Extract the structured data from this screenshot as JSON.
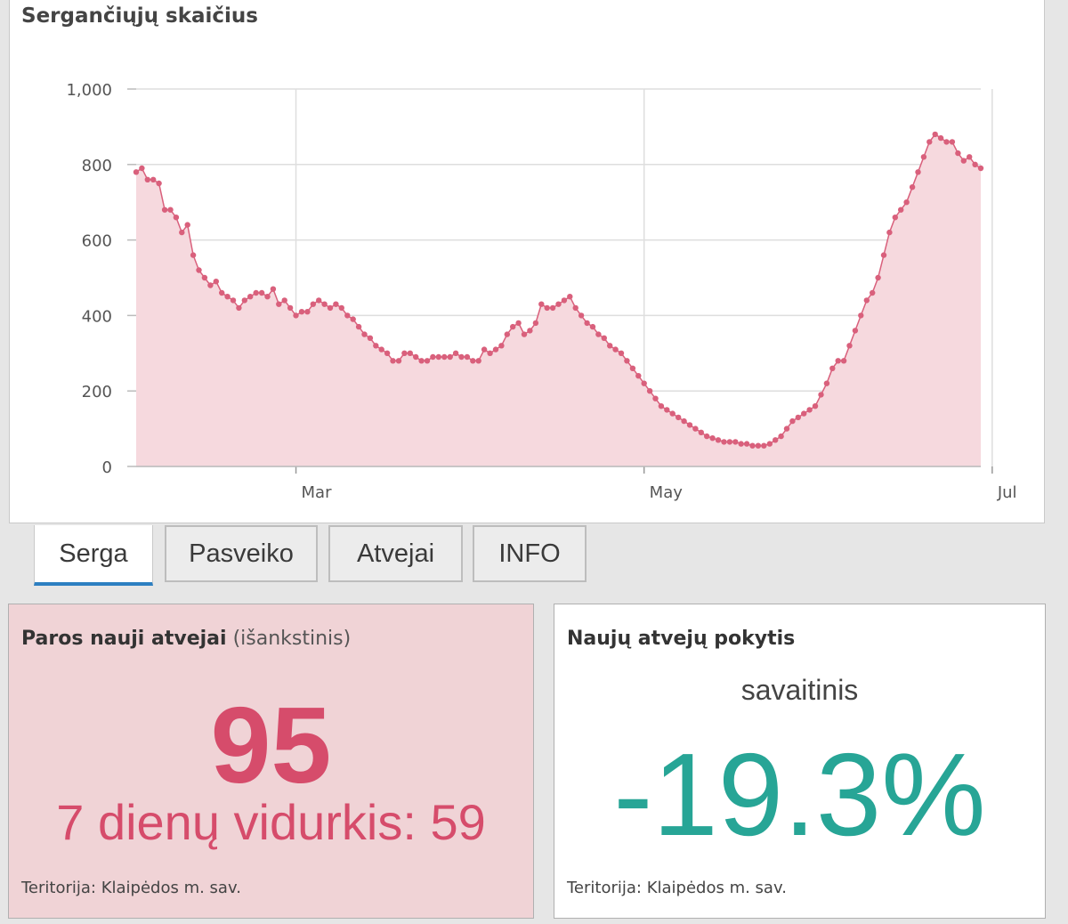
{
  "chart": {
    "title": "Sergančiųjų skaičius"
  },
  "chart_data": {
    "type": "area",
    "title": "Sergančiųjų skaičius",
    "xlabel": "",
    "ylabel": "",
    "ylim": [
      0,
      1000
    ],
    "y_ticks": [
      "0",
      "200",
      "400",
      "600",
      "800",
      "1,000"
    ],
    "x_ticks": [
      "Mar",
      "May",
      "Jul"
    ],
    "grid": true,
    "colors": {
      "line": "#d9607c",
      "fill": "#f6d9de",
      "grid": "#dedede"
    },
    "x_start": "2021-02-01",
    "values": [
      780,
      790,
      760,
      760,
      750,
      680,
      680,
      660,
      620,
      640,
      560,
      520,
      500,
      480,
      490,
      460,
      450,
      440,
      420,
      440,
      450,
      460,
      460,
      450,
      470,
      430,
      440,
      420,
      400,
      410,
      410,
      430,
      440,
      430,
      420,
      430,
      420,
      400,
      390,
      370,
      350,
      340,
      320,
      310,
      300,
      280,
      280,
      300,
      300,
      290,
      280,
      280,
      290,
      290,
      290,
      290,
      300,
      290,
      290,
      280,
      280,
      310,
      300,
      310,
      320,
      350,
      370,
      380,
      350,
      360,
      380,
      430,
      420,
      420,
      430,
      440,
      450,
      420,
      400,
      380,
      370,
      350,
      340,
      320,
      310,
      300,
      280,
      260,
      240,
      220,
      200,
      180,
      160,
      150,
      140,
      130,
      120,
      110,
      100,
      90,
      80,
      75,
      70,
      65,
      65,
      65,
      60,
      60,
      55,
      55,
      55,
      60,
      70,
      80,
      100,
      120,
      130,
      140,
      150,
      160,
      190,
      220,
      260,
      280,
      280,
      320,
      360,
      400,
      440,
      460,
      500,
      560,
      620,
      660,
      680,
      700,
      740,
      780,
      820,
      860,
      880,
      870,
      860,
      860,
      830,
      810,
      820,
      800,
      790
    ]
  },
  "tabs": [
    {
      "label": "Serga",
      "active": true
    },
    {
      "label": "Pasveiko",
      "active": false
    },
    {
      "label": "Atvejai",
      "active": false
    },
    {
      "label": "INFO",
      "active": false
    }
  ],
  "new_cases": {
    "heading": "Paros nauji atvejai",
    "subheading": "(išankstinis)",
    "value": "95",
    "avg_text": "7 dienų vidurkis: 59",
    "territory": "Teritorija: Klaipėdos m. sav."
  },
  "change": {
    "heading": "Naujų atvejų pokytis",
    "period": "savaitinis",
    "value": "-19.3%",
    "territory": "Teritorija: Klaipėdos m. sav."
  }
}
